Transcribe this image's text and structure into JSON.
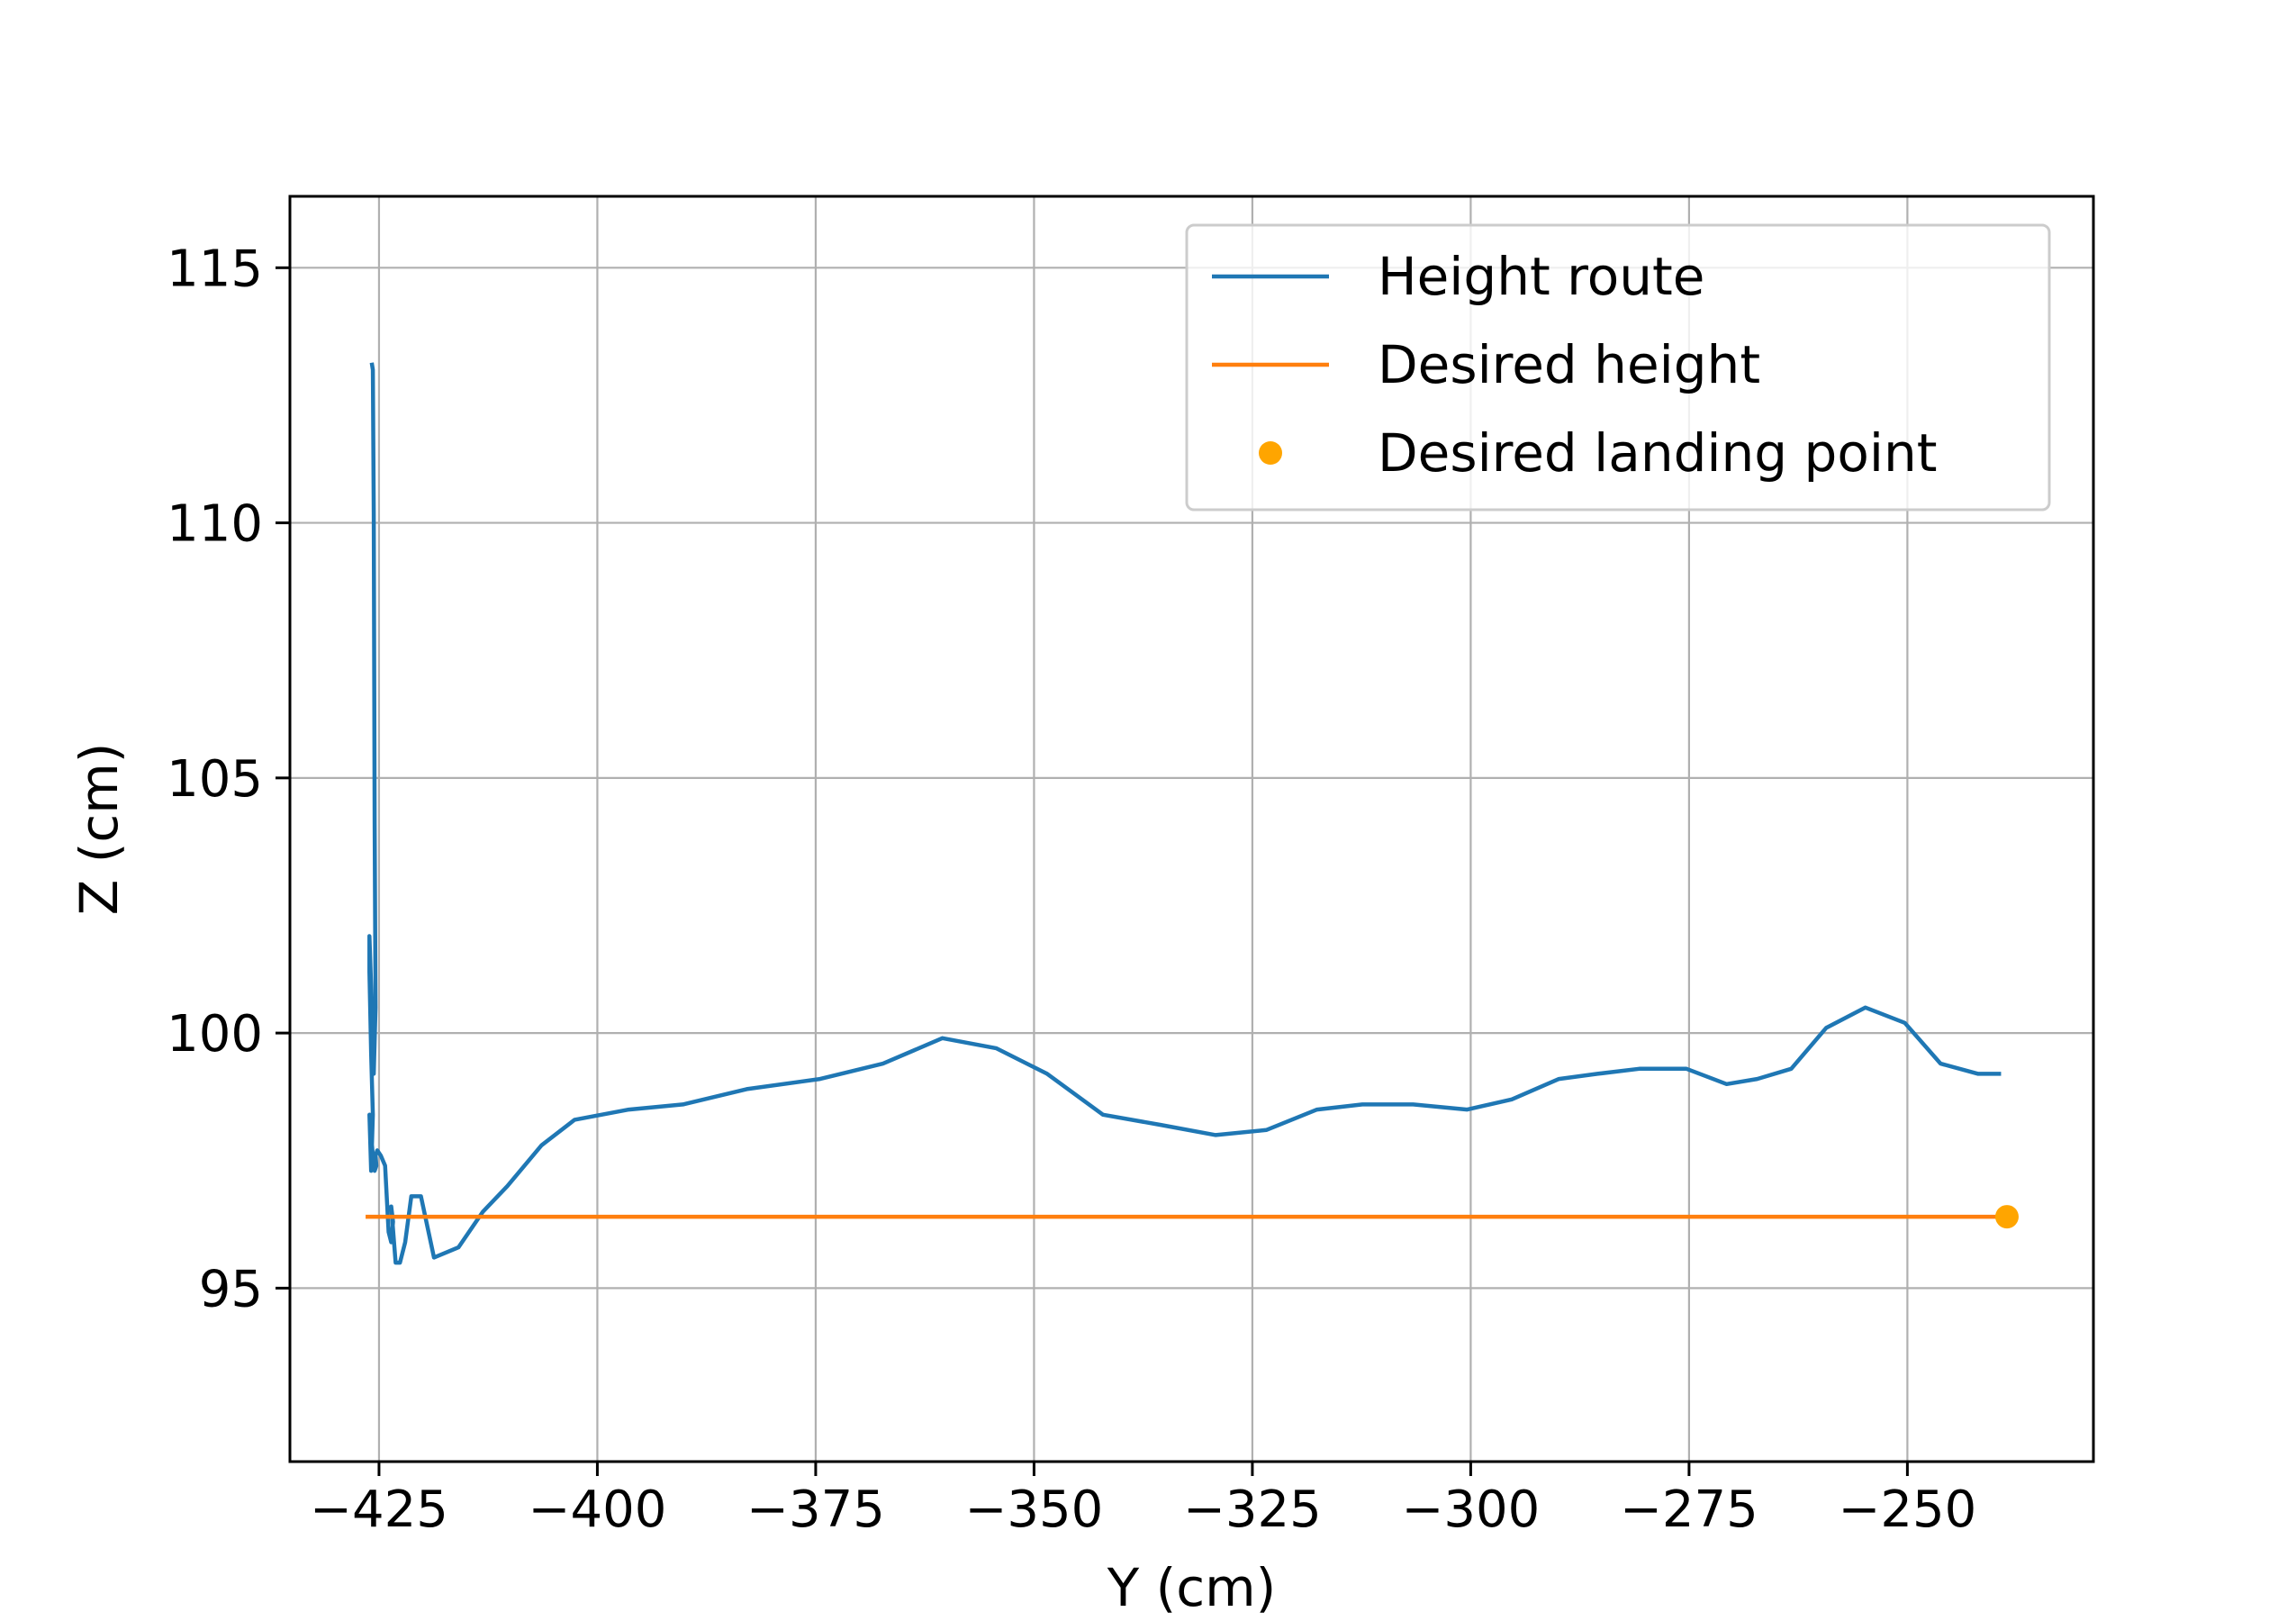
{
  "chart_data": {
    "type": "line",
    "xlabel": "Y (cm)",
    "ylabel": "Z (cm)",
    "xlim": [
      -435.2,
      -228.7
    ],
    "ylim": [
      91.6,
      116.4
    ],
    "xticks": [
      -425,
      -400,
      -375,
      -350,
      -325,
      -300,
      -275,
      -250
    ],
    "xtick_labels": [
      "−425",
      "−400",
      "−375",
      "−350",
      "−325",
      "−300",
      "−275",
      "−250"
    ],
    "yticks": [
      95,
      100,
      105,
      110,
      115
    ],
    "ytick_labels": [
      "95",
      "100",
      "105",
      "110",
      "115"
    ],
    "grid": true,
    "legend_position": "top-right",
    "series": [
      {
        "name": "Height route",
        "kind": "line",
        "color": "#1f77b4",
        "x": [
          -425.8,
          -425.7,
          -425.6,
          -425.5,
          -425.4,
          -425.6,
          -425.9,
          -426.1,
          -426.1,
          -425.9,
          -425.7,
          -425.9,
          -426.1,
          -426.0,
          -425.7,
          -425.5,
          -425.3,
          -425.4,
          -425.2,
          -424.8,
          -424.3,
          -423.9,
          -423.6,
          -423.4,
          -423.6,
          -423.1,
          -422.6,
          -422.0,
          -421.3,
          -420.2,
          -418.7,
          -415.9,
          -413.1,
          -410.3,
          -406.4,
          -402.6,
          -396.4,
          -390.2,
          -382.9,
          -374.5,
          -367.3,
          -360.5,
          -354.3,
          -348.5,
          -342.1,
          -335.5,
          -329.2,
          -323.4,
          -317.6,
          -312.4,
          -306.6,
          -300.4,
          -295.3,
          -289.9,
          -285.5,
          -280.7,
          -275.3,
          -270.7,
          -267.2,
          -263.3,
          -259.3,
          -254.8,
          -250.3,
          -246.2,
          -241.9,
          -239.5
        ],
        "y": [
          113.1,
          113.0,
          110.2,
          104.1,
          100.5,
          99.2,
          100.9,
          101.9,
          101.2,
          99.6,
          98.4,
          97.3,
          98.4,
          98.2,
          97.6,
          97.3,
          97.4,
          97.6,
          97.7,
          97.6,
          97.4,
          96.1,
          95.9,
          96.3,
          96.6,
          95.5,
          95.5,
          95.9,
          96.8,
          96.8,
          95.6,
          95.8,
          96.5,
          97.0,
          97.8,
          98.3,
          98.5,
          98.6,
          98.9,
          99.1,
          99.4,
          99.9,
          99.7,
          99.2,
          98.4,
          98.2,
          98.0,
          98.1,
          98.5,
          98.6,
          98.6,
          98.5,
          98.7,
          99.1,
          99.2,
          99.3,
          99.3,
          99.0,
          99.1,
          99.3,
          100.1,
          100.5,
          100.2,
          99.4,
          99.2,
          99.2
        ]
      },
      {
        "name": "Desired height",
        "kind": "line",
        "color": "#ff7f0e",
        "x": [
          -426.3,
          -238.6
        ],
        "y": [
          96.4,
          96.4
        ]
      },
      {
        "name": "Desired landing point",
        "kind": "scatter",
        "color": "#ffa500",
        "x": [
          -238.6
        ],
        "y": [
          96.4
        ]
      }
    ]
  }
}
